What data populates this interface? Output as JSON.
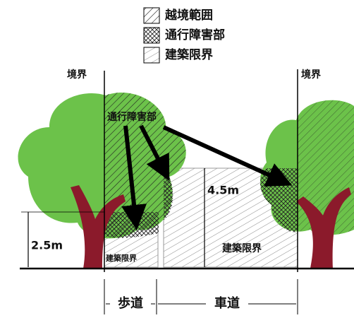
{
  "legend": [
    "越境範囲",
    "通行障害部",
    "建築限界"
  ],
  "boundary_labels": [
    "境界",
    "境界"
  ],
  "obstruction_label": "通行障害部",
  "dimensions": [
    "2.5m",
    "4.5m"
  ],
  "clearance_labels": [
    "建築限界",
    "建築限界"
  ],
  "zones": [
    "歩道",
    "車道"
  ]
}
